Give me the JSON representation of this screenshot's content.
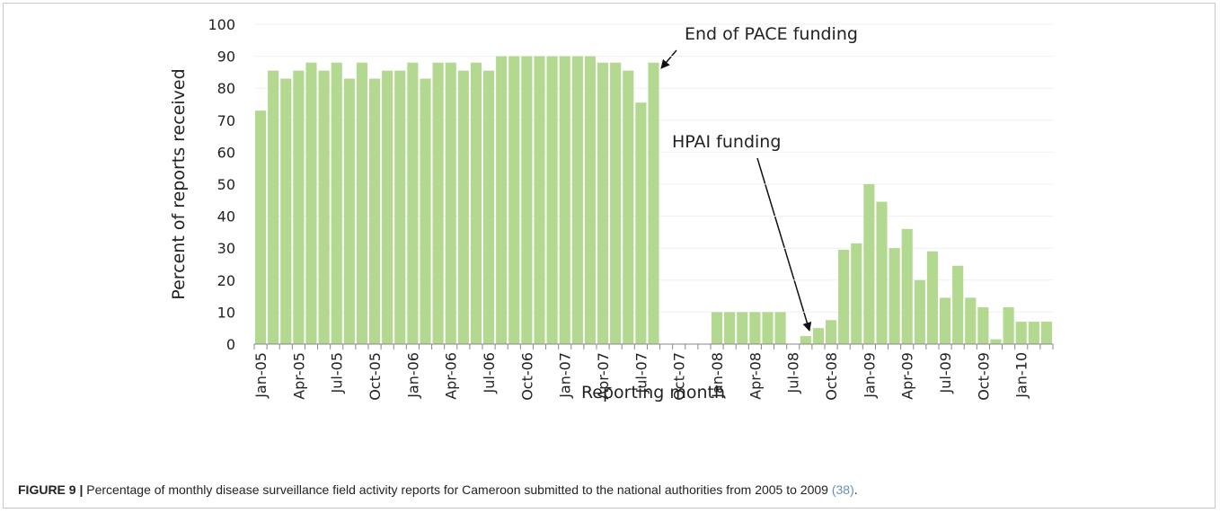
{
  "chart_data": {
    "type": "bar",
    "annotations": [
      "End of PACE funding",
      "HPAI funding"
    ],
    "xlabel": "Reporting month",
    "ylabel": "Percent of reports received",
    "categories": [
      "Jan-05",
      null,
      null,
      "Apr-05",
      null,
      null,
      "Jul-05",
      null,
      null,
      "Oct-05",
      null,
      null,
      "Jan-06",
      null,
      null,
      "Apr-06",
      null,
      null,
      "Jul-06",
      null,
      null,
      "Oct-06",
      null,
      null,
      "Jan-07",
      null,
      null,
      "Apr-07",
      null,
      null,
      "Jul-07",
      null,
      null,
      "Oct-07",
      null,
      null,
      "Jan-08",
      null,
      null,
      "Apr-08",
      null,
      null,
      "Jul-08",
      null,
      null,
      "Oct-08",
      null,
      null,
      "Jan-09",
      null,
      null,
      "Apr-09",
      null,
      null,
      "Jul-09",
      null,
      null,
      "Oct-09",
      null,
      null,
      "Jan-10",
      null,
      null
    ],
    "values": [
      73,
      85.5,
      83,
      85.5,
      88,
      85.5,
      88,
      83,
      88,
      83,
      85.5,
      85.5,
      88,
      83,
      88,
      88,
      85.5,
      88,
      85.5,
      90,
      90,
      90,
      90,
      90,
      90,
      90,
      90,
      88,
      88,
      85.5,
      75.5,
      88,
      0,
      0,
      0,
      0,
      10,
      10,
      10,
      10,
      10,
      10,
      0,
      2.5,
      5,
      7.5,
      29.5,
      31.5,
      50,
      44.5,
      30,
      36,
      20,
      29,
      14.5,
      24.5,
      14.5,
      11.5,
      1.5,
      11.5,
      7,
      7,
      7
    ],
    "color": "#b2d98f",
    "ylim": [
      0,
      100
    ],
    "yticks": [
      0,
      10,
      20,
      30,
      40,
      50,
      60,
      70,
      80,
      90,
      100
    ],
    "grid": true
  },
  "caption": {
    "label": "FIGURE 9 |",
    "text": "Percentage of monthly disease surveillance field activity reports for Cameroon submitted to the national authorities from 2005 to 2009",
    "ref": "(38)",
    "end": "."
  }
}
